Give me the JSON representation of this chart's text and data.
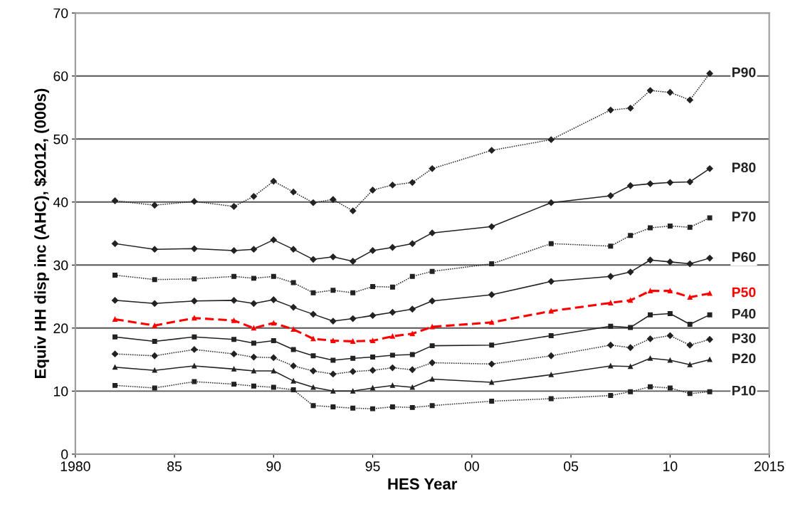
{
  "chart_data": {
    "type": "line",
    "xlabel": "HES Year",
    "ylabel": "Equiv HH disp inc (AHC), $2012, (000s)",
    "x": [
      1982,
      1984,
      1986,
      1988,
      1989,
      1990,
      1991,
      1992,
      1993,
      1994,
      1995,
      1996,
      1997,
      1998,
      2001,
      2004,
      2007,
      2008,
      2009,
      2010,
      2011,
      2012
    ],
    "xlim": [
      1980,
      2015
    ],
    "xticks": [
      1980,
      {
        "value": 1985,
        "label": "85"
      },
      {
        "value": 1990,
        "label": "90"
      },
      {
        "value": 1995,
        "label": "95"
      },
      {
        "value": 2000,
        "label": "00"
      },
      {
        "value": 2005,
        "label": "05"
      },
      {
        "value": 2010,
        "label": "10"
      },
      2015
    ],
    "ylim": [
      0,
      70
    ],
    "yticks": [
      0,
      10,
      20,
      30,
      40,
      50,
      60,
      70
    ],
    "grid": "y",
    "legend": false,
    "series": [
      {
        "name": "P90",
        "color": "#222222",
        "marker": "diamond",
        "line_style": "dotted",
        "values": [
          40.2,
          39.5,
          40.1,
          39.3,
          40.9,
          43.3,
          41.6,
          39.9,
          40.4,
          38.6,
          41.9,
          42.7,
          43.1,
          45.3,
          48.2,
          49.9,
          54.6,
          54.9,
          57.7,
          57.4,
          56.2,
          60.4
        ]
      },
      {
        "name": "P80",
        "color": "#222222",
        "marker": "diamond",
        "line_style": "solid",
        "values": [
          33.4,
          32.5,
          32.6,
          32.3,
          32.5,
          34.0,
          32.5,
          30.9,
          31.3,
          30.6,
          32.3,
          32.8,
          33.4,
          35.1,
          36.1,
          39.9,
          41.0,
          42.6,
          42.9,
          43.1,
          43.2,
          45.3
        ]
      },
      {
        "name": "P70",
        "color": "#222222",
        "marker": "square",
        "line_style": "dotted",
        "values": [
          28.4,
          27.7,
          27.8,
          28.2,
          27.9,
          28.2,
          27.2,
          25.6,
          26.0,
          25.6,
          26.6,
          26.5,
          28.2,
          29.0,
          30.2,
          33.4,
          33.0,
          34.7,
          35.9,
          36.2,
          36.0,
          37.5
        ]
      },
      {
        "name": "P60",
        "color": "#222222",
        "marker": "diamond",
        "line_style": "solid",
        "values": [
          24.4,
          23.9,
          24.3,
          24.4,
          23.9,
          24.5,
          23.3,
          22.2,
          21.1,
          21.5,
          22.0,
          22.5,
          23.0,
          24.3,
          25.3,
          27.4,
          28.2,
          28.9,
          30.8,
          30.5,
          30.2,
          31.1
        ]
      },
      {
        "name": "P50",
        "color": "#ff0000",
        "marker": "triangle",
        "line_style": "dashed",
        "values": [
          21.4,
          20.4,
          21.6,
          21.2,
          20.0,
          20.8,
          19.8,
          18.3,
          18.0,
          17.9,
          18.0,
          18.7,
          19.1,
          20.2,
          20.9,
          22.7,
          24.0,
          24.4,
          25.9,
          25.9,
          24.9,
          25.5
        ]
      },
      {
        "name": "P40",
        "color": "#222222",
        "marker": "square",
        "line_style": "solid",
        "values": [
          18.6,
          17.9,
          18.6,
          18.2,
          17.6,
          18.0,
          16.6,
          15.6,
          14.9,
          15.2,
          15.4,
          15.7,
          15.8,
          17.2,
          17.3,
          18.8,
          20.3,
          20.1,
          22.1,
          22.3,
          20.6,
          22.1
        ]
      },
      {
        "name": "P30",
        "color": "#222222",
        "marker": "diamond",
        "line_style": "dotted",
        "values": [
          15.9,
          15.6,
          16.6,
          15.9,
          15.4,
          15.3,
          14.0,
          13.2,
          12.7,
          13.1,
          13.3,
          13.7,
          13.4,
          14.5,
          14.3,
          15.6,
          17.3,
          16.9,
          18.3,
          18.8,
          17.3,
          18.2
        ]
      },
      {
        "name": "P20",
        "color": "#222222",
        "marker": "triangle",
        "line_style": "solid",
        "values": [
          13.8,
          13.3,
          14.0,
          13.5,
          13.2,
          13.2,
          11.6,
          10.6,
          10.0,
          10.0,
          10.5,
          10.9,
          10.6,
          11.9,
          11.4,
          12.6,
          14.0,
          13.9,
          15.2,
          14.9,
          14.2,
          15.0
        ]
      },
      {
        "name": "P10",
        "color": "#222222",
        "marker": "square",
        "line_style": "dotted",
        "values": [
          10.9,
          10.5,
          11.5,
          11.1,
          10.8,
          10.6,
          10.2,
          7.7,
          7.5,
          7.3,
          7.2,
          7.5,
          7.4,
          7.7,
          8.4,
          8.8,
          9.3,
          9.9,
          10.7,
          10.5,
          9.6,
          9.9
        ]
      }
    ]
  }
}
